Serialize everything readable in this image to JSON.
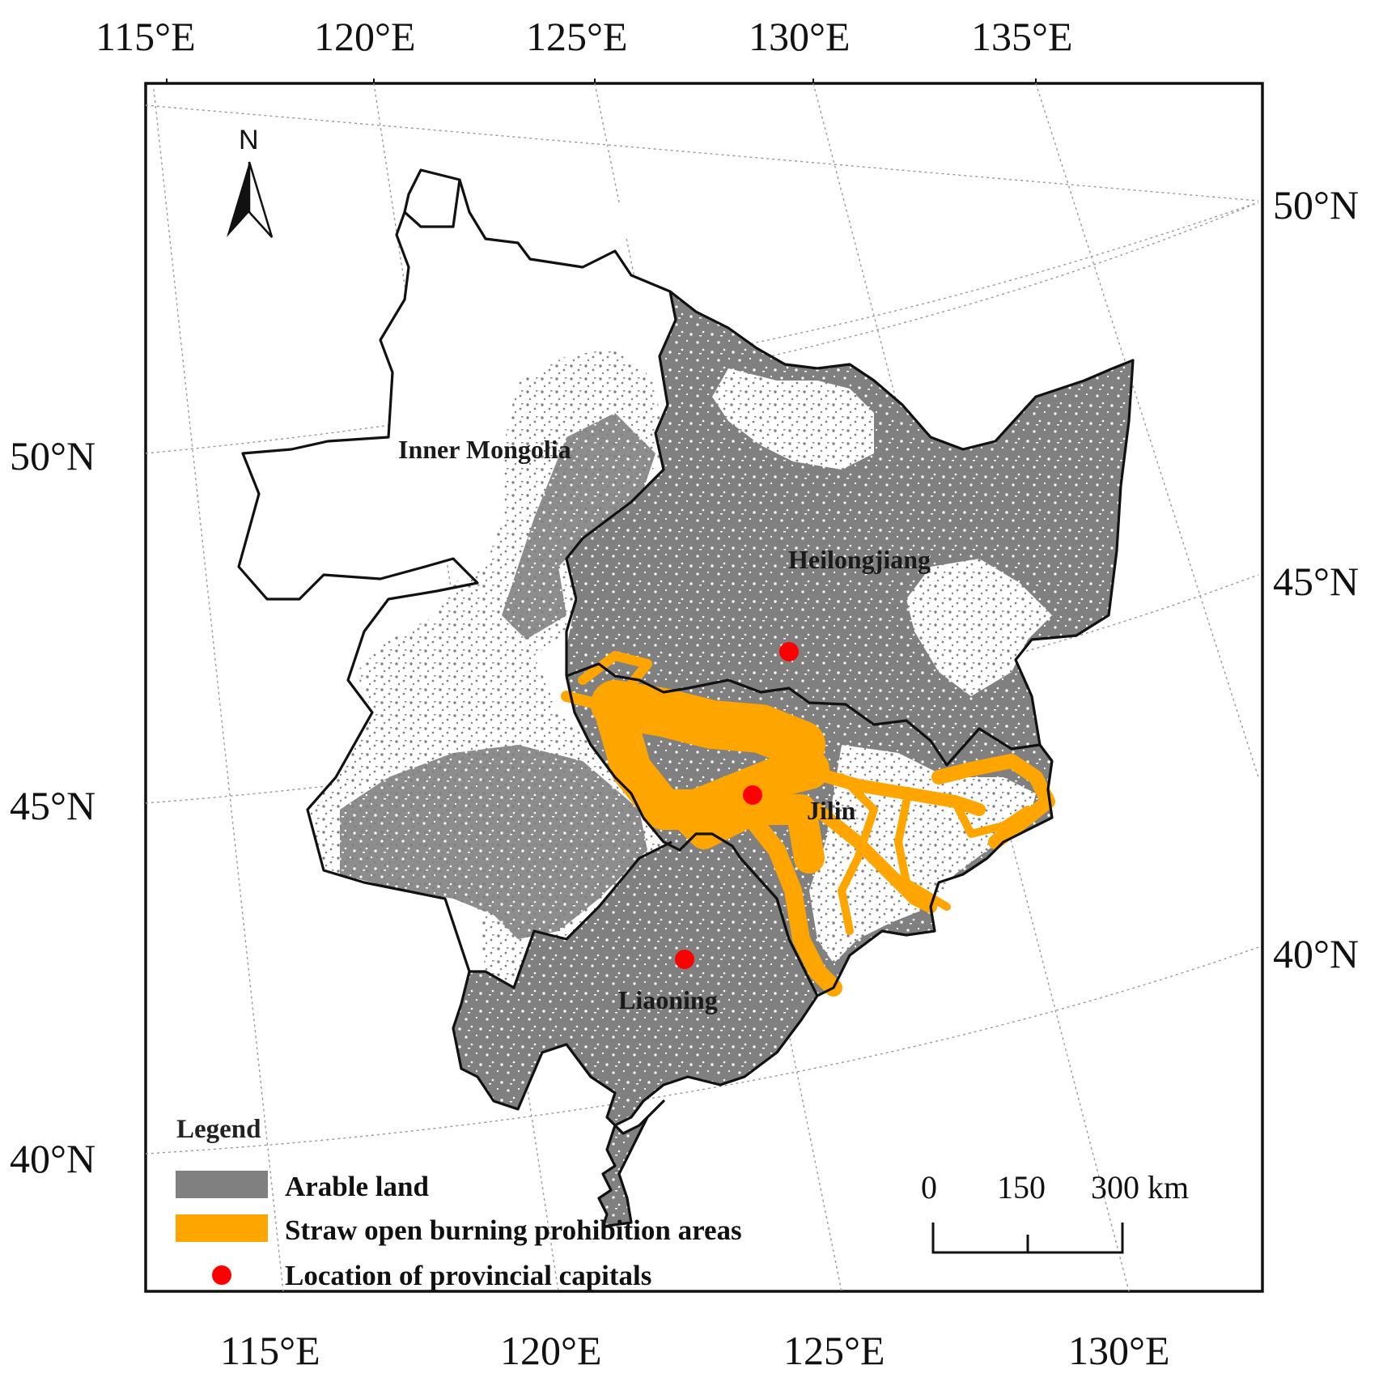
{
  "map": {
    "ticks": {
      "top": [
        "115°E",
        "120°E",
        "125°E",
        "130°E",
        "135°E"
      ],
      "bottom": [
        "115°E",
        "120°E",
        "125°E",
        "130°E"
      ],
      "left": [
        "50°N",
        "45°N",
        "40°N"
      ],
      "right": [
        "50°N",
        "45°N",
        "40°N"
      ]
    },
    "north_arrow": {
      "label": "N"
    },
    "provinces": [
      {
        "id": "inner-mongolia",
        "label": "Inner Mongolia"
      },
      {
        "id": "heilongjiang",
        "label": "Heilongjiang"
      },
      {
        "id": "jilin",
        "label": "Jilin"
      },
      {
        "id": "liaoning",
        "label": "Liaoning"
      }
    ],
    "capitals": [
      "heilongjiang",
      "jilin",
      "liaoning"
    ],
    "legend": {
      "title": "Legend",
      "items": [
        {
          "label": "Arable land",
          "color": "#808080"
        },
        {
          "label": "Straw open burning prohibition areas",
          "color": "#FFA500"
        },
        {
          "label": "Location of provincial capitals",
          "color": "#FF0000"
        }
      ]
    },
    "scale_bar": {
      "labels": [
        "0",
        "150",
        "300 km"
      ]
    },
    "colors": {
      "arable": "#808080",
      "prohibition": "#FFA500",
      "capital": "#FF0000",
      "border": "#111111",
      "graticule": "#9a9a9a"
    }
  }
}
